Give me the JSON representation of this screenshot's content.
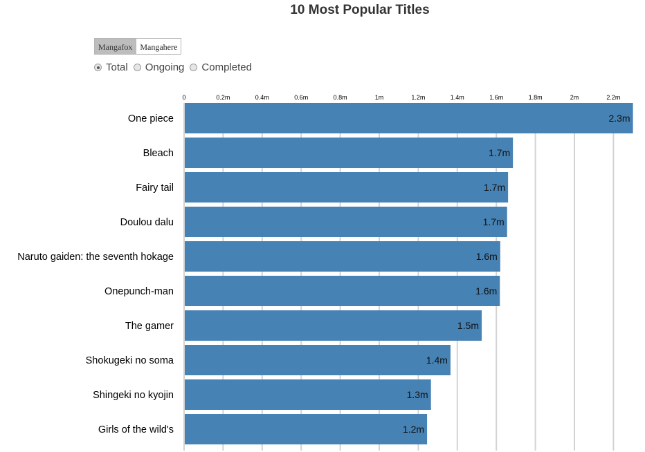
{
  "tabs": [
    {
      "label": "Mangafox",
      "active": true
    },
    {
      "label": "Mangahere",
      "active": false
    }
  ],
  "status_filter": {
    "options": [
      {
        "label": "Total",
        "checked": true
      },
      {
        "label": "Ongoing",
        "checked": false
      },
      {
        "label": "Completed",
        "checked": false
      }
    ]
  },
  "colors": {
    "bar": "#4682b4",
    "grid": "#d3d3d3"
  },
  "chart_data": {
    "type": "bar",
    "orientation": "horizontal",
    "title": "10 Most Popular Titles",
    "xlim": [
      0,
      2.3
    ],
    "x_ticks": [
      0,
      0.2,
      0.4,
      0.6,
      0.8,
      1,
      1.2,
      1.4,
      1.6,
      1.8,
      2,
      2.2
    ],
    "x_tick_labels": [
      "0",
      "0.2m",
      "0.4m",
      "0.6m",
      "0.8m",
      "1m",
      "1.2m",
      "1.4m",
      "1.6m",
      "1.8m",
      "2m",
      "2.2m"
    ],
    "grid": true,
    "categories": [
      "One piece",
      "Bleach",
      "Fairy tail",
      "Doulou dalu",
      "Naruto gaiden: the seventh hokage",
      "Onepunch-man",
      "The gamer",
      "Shokugeki no soma",
      "Shingeki no kyojin",
      "Girls of the wild's"
    ],
    "values": [
      2.3,
      1.685,
      1.66,
      1.655,
      1.62,
      1.618,
      1.525,
      1.365,
      1.265,
      1.245
    ],
    "value_labels": [
      "2.3m",
      "1.7m",
      "1.7m",
      "1.7m",
      "1.6m",
      "1.6m",
      "1.5m",
      "1.4m",
      "1.3m",
      "1.2m"
    ]
  }
}
